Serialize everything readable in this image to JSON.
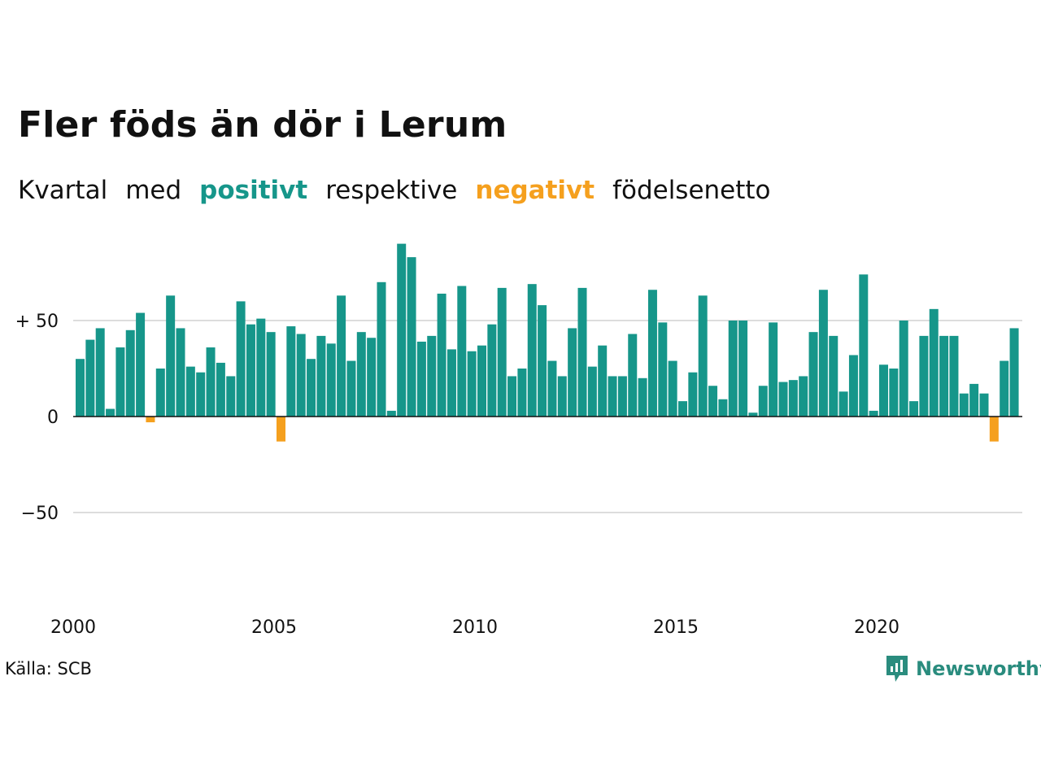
{
  "title": "Fler föds än dör i Lerum",
  "subtitle": {
    "word1": "Kvartal",
    "word2": "med",
    "positive": "positivt",
    "word3": "respektive",
    "negative": "negativt",
    "word4": "födelsenetto"
  },
  "source": "Källa: SCB",
  "logo": {
    "text": "Newsworthy",
    "icon": "newsworthy-logo-icon"
  },
  "colors": {
    "positive": "#16968a",
    "negative": "#f5a01e",
    "grid": "#dddddd",
    "zero": "#111111"
  },
  "chart_data": {
    "type": "bar",
    "ylim": [
      -100,
      100
    ],
    "yticks": [
      {
        "value": 50,
        "label": "+ 50"
      },
      {
        "value": 0,
        "label": "0"
      },
      {
        "value": -50,
        "label": "−50"
      }
    ],
    "xticks": [
      {
        "value": 2000,
        "label": "2000"
      },
      {
        "value": 2005,
        "label": "2005"
      },
      {
        "value": 2010,
        "label": "2010"
      },
      {
        "value": 2015,
        "label": "2015"
      },
      {
        "value": 2020,
        "label": "2020"
      }
    ],
    "x_start": 2000,
    "quarters_per_year": 4,
    "values": [
      30,
      40,
      46,
      4,
      36,
      45,
      54,
      -3,
      25,
      63,
      46,
      26,
      23,
      36,
      28,
      21,
      60,
      48,
      51,
      44,
      -13,
      47,
      43,
      30,
      42,
      38,
      63,
      29,
      44,
      41,
      70,
      3,
      90,
      83,
      39,
      42,
      64,
      35,
      68,
      34,
      37,
      48,
      67,
      21,
      25,
      69,
      58,
      29,
      21,
      46,
      67,
      26,
      37,
      21,
      21,
      43,
      20,
      66,
      49,
      29,
      8,
      23,
      63,
      16,
      9,
      50,
      50,
      2,
      16,
      49,
      18,
      19,
      21,
      44,
      66,
      42,
      13,
      32,
      74,
      3,
      27,
      25,
      50,
      8,
      42,
      56,
      42,
      42,
      12,
      17,
      12,
      -13,
      29,
      46
    ]
  }
}
